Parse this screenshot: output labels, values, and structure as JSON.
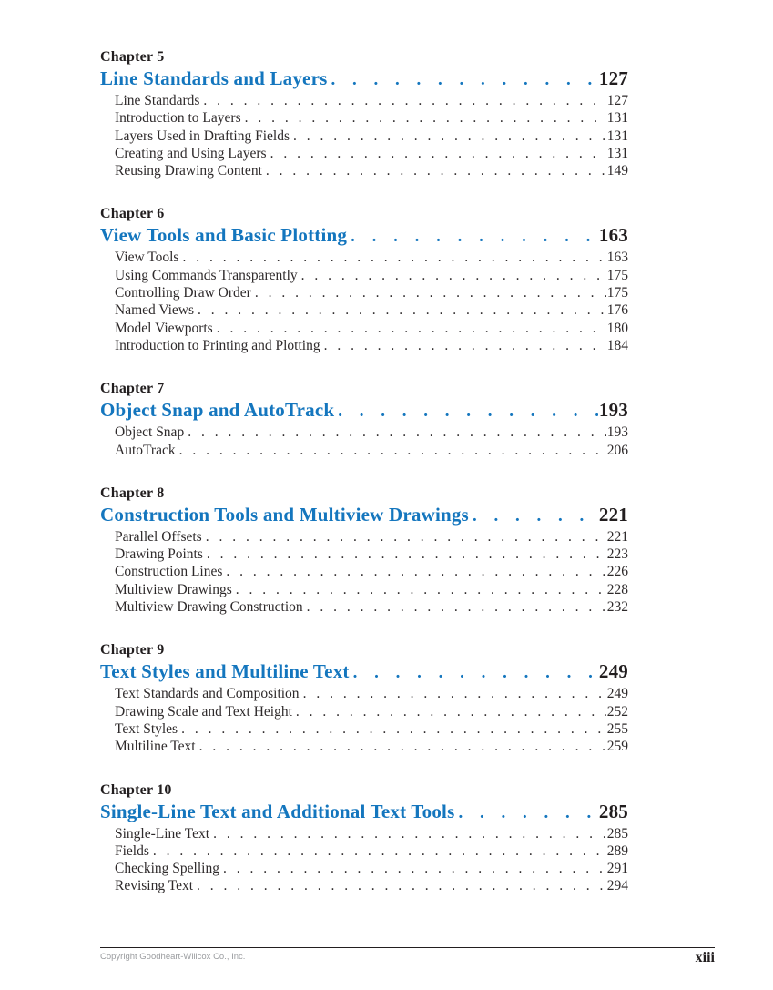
{
  "colors": {
    "accent_blue": "#1476BE",
    "heading_ink": "#221E1F",
    "body_text": "#2E2A2B",
    "footer_muted": "#9B9DA0"
  },
  "toc": {
    "chapters": [
      {
        "label": "Chapter 5",
        "title": "Line Standards and Layers",
        "page": "127",
        "sections": [
          {
            "title": "Line Standards",
            "page": "127"
          },
          {
            "title": "Introduction to Layers",
            "page": "131"
          },
          {
            "title": "Layers Used in Drafting Fields",
            "page": "131"
          },
          {
            "title": "Creating and Using Layers",
            "page": "131"
          },
          {
            "title": "Reusing Drawing Content",
            "page": "149"
          }
        ]
      },
      {
        "label": "Chapter 6",
        "title": "View Tools and Basic Plotting",
        "page": "163",
        "sections": [
          {
            "title": "View Tools",
            "page": "163"
          },
          {
            "title": "Using Commands Transparently",
            "page": "175"
          },
          {
            "title": "Controlling Draw Order",
            "page": "175"
          },
          {
            "title": "Named Views",
            "page": "176"
          },
          {
            "title": "Model Viewports",
            "page": "180"
          },
          {
            "title": "Introduction to Printing and Plotting",
            "page": "184"
          }
        ]
      },
      {
        "label": "Chapter 7",
        "title": "Object Snap and AutoTrack",
        "page": "193",
        "sections": [
          {
            "title": "Object Snap",
            "page": "193"
          },
          {
            "title": "AutoTrack",
            "page": "206"
          }
        ]
      },
      {
        "label": "Chapter 8",
        "title": "Construction Tools and Multiview Drawings",
        "page": "221",
        "sections": [
          {
            "title": "Parallel Offsets",
            "page": "221"
          },
          {
            "title": "Drawing Points",
            "page": "223"
          },
          {
            "title": "Construction Lines",
            "page": "226"
          },
          {
            "title": "Multiview Drawings",
            "page": "228"
          },
          {
            "title": "Multiview Drawing Construction",
            "page": "232"
          }
        ]
      },
      {
        "label": "Chapter 9",
        "title": "Text Styles and Multiline Text",
        "page": "249",
        "sections": [
          {
            "title": "Text Standards and Composition",
            "page": "249"
          },
          {
            "title": "Drawing Scale and Text Height",
            "page": "252"
          },
          {
            "title": "Text Styles",
            "page": "255"
          },
          {
            "title": "Multiline Text",
            "page": "259"
          }
        ]
      },
      {
        "label": "Chapter 10",
        "title": "Single-Line Text and Additional Text Tools",
        "page": "285",
        "sections": [
          {
            "title": "Single-Line Text",
            "page": "285"
          },
          {
            "title": "Fields",
            "page": "289"
          },
          {
            "title": "Checking Spelling",
            "page": "291"
          },
          {
            "title": "Revising Text",
            "page": "294"
          }
        ]
      }
    ]
  },
  "footer": {
    "copyright": "Copyright Goodheart-Willcox Co., Inc.",
    "page_number": "xiii"
  }
}
